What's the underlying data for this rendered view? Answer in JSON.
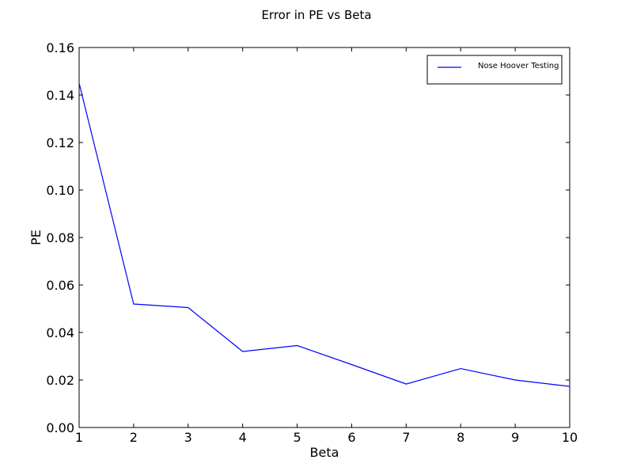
{
  "chart_data": {
    "type": "line",
    "title": "Error in PE vs Beta",
    "xlabel": "Beta",
    "ylabel": "PE",
    "xlim": [
      1,
      10
    ],
    "ylim": [
      0,
      0.16
    ],
    "xticks": [
      "1",
      "2",
      "3",
      "4",
      "5",
      "6",
      "7",
      "8",
      "9",
      "10"
    ],
    "yticks": [
      "0.00",
      "0.02",
      "0.04",
      "0.06",
      "0.08",
      "0.10",
      "0.12",
      "0.14",
      "0.16"
    ],
    "grid": false,
    "legend_position": "top-right",
    "series": [
      {
        "name": "Nose Hoover Testing",
        "color": "#0000ff",
        "x": [
          1,
          2,
          3,
          4,
          5,
          6,
          7,
          8,
          9,
          10
        ],
        "y": [
          0.145,
          0.052,
          0.0505,
          0.032,
          0.0345,
          0.0265,
          0.0183,
          0.0248,
          0.02,
          0.0173
        ]
      }
    ]
  }
}
